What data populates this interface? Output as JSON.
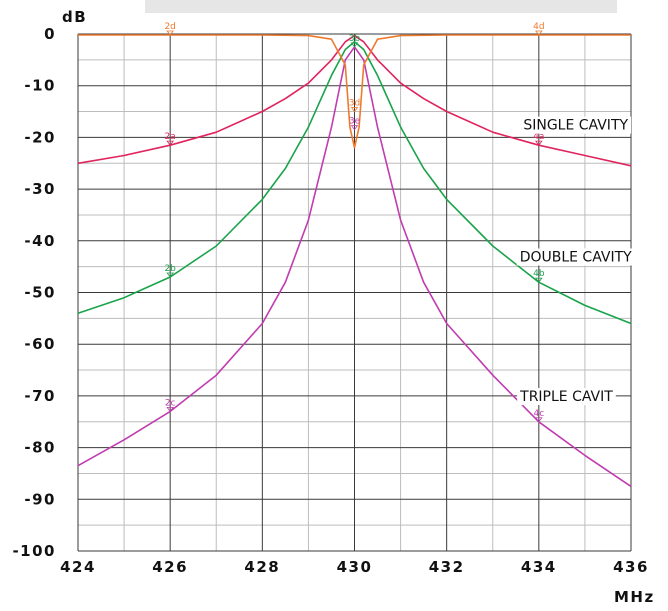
{
  "chart_data": {
    "type": "line",
    "title": "",
    "xlabel": "MHz",
    "ylabel": "dB",
    "xlim": [
      424,
      436
    ],
    "ylim": [
      -100,
      0
    ],
    "x_ticks": [
      "424",
      "426",
      "428",
      "430",
      "432",
      "434",
      "436"
    ],
    "y_ticks": [
      "0",
      "-10",
      "-20",
      "-30",
      "-40",
      "-50",
      "-60",
      "-70",
      "-80",
      "-90",
      "-100"
    ],
    "grid": true,
    "colors": {
      "single": "#e0245e",
      "double": "#19a34a",
      "triple": "#c03cb0",
      "notch": "#ee7a2e",
      "grid": "#3a3a3a",
      "gridMinor": "#bdbdbd"
    },
    "series": [
      {
        "name": "SINGLE CAVITY",
        "x": [
          424,
          425,
          426,
          427,
          428,
          428.5,
          429,
          429.5,
          429.8,
          430,
          430.2,
          430.5,
          431,
          431.5,
          432,
          433,
          434,
          435,
          436
        ],
        "y": [
          -25,
          -23.5,
          -21.5,
          -19,
          -15,
          -12.5,
          -9.5,
          -5,
          -1.5,
          -0.3,
          -1.5,
          -5,
          -9.5,
          -12.5,
          -15,
          -19,
          -21.5,
          -23.5,
          -25.5
        ]
      },
      {
        "name": "DOUBLE CAVITY",
        "x": [
          424,
          425,
          426,
          427,
          428,
          428.5,
          429,
          429.5,
          429.8,
          430,
          430.2,
          430.5,
          431,
          431.5,
          432,
          433,
          434,
          435,
          436
        ],
        "y": [
          -54,
          -51,
          -47,
          -41,
          -32,
          -26,
          -18,
          -8,
          -3,
          -1.5,
          -3,
          -8,
          -18,
          -26,
          -32,
          -41,
          -48,
          -52.5,
          -56
        ]
      },
      {
        "name": "TRIPLE CAVIT",
        "x": [
          424,
          425,
          426,
          427,
          428,
          428.5,
          429,
          429.5,
          429.8,
          430,
          430.2,
          430.5,
          431,
          431.5,
          432,
          433,
          434,
          435,
          436
        ],
        "y": [
          -83.5,
          -78.5,
          -73,
          -66,
          -56,
          -48,
          -36,
          -18,
          -5,
          -2.5,
          -5,
          -18,
          -36,
          -48,
          -56,
          -66,
          -75,
          -81.5,
          -87.5
        ]
      },
      {
        "name": "",
        "x": [
          424,
          428,
          429,
          429.5,
          429.8,
          429.9,
          430,
          430.1,
          430.2,
          430.5,
          431,
          432,
          436
        ],
        "y": [
          -0.2,
          -0.2,
          -0.3,
          -1,
          -6,
          -18,
          -22,
          -18,
          -6,
          -1,
          -0.3,
          -0.2,
          -0.2
        ]
      }
    ],
    "annotations": [
      {
        "text": "SINGLE CAVITY",
        "x": 434.8,
        "y": -18.5
      },
      {
        "text": "DOUBLE CAVITY",
        "x": 434.8,
        "y": -44
      },
      {
        "text": "TRIPLE CAVIT",
        "x": 434.6,
        "y": -71
      }
    ],
    "markers": [
      {
        "text": "2d",
        "x": 426,
        "y": -0.2,
        "series": 3
      },
      {
        "text": "4d",
        "x": 434,
        "y": -0.2,
        "series": 3
      },
      {
        "text": "2a",
        "x": 426,
        "y": -21.5,
        "series": 0
      },
      {
        "text": "4a",
        "x": 434,
        "y": -21.5,
        "series": 0
      },
      {
        "text": "2b",
        "x": 426,
        "y": -47,
        "series": 1
      },
      {
        "text": "4b",
        "x": 434,
        "y": -48,
        "series": 1
      },
      {
        "text": "2c",
        "x": 426,
        "y": -73,
        "series": 2
      },
      {
        "text": "4c",
        "x": 434,
        "y": -75,
        "series": 2
      },
      {
        "text": "3b",
        "x": 430,
        "y": -2.5,
        "series": 1
      },
      {
        "text": "3d",
        "x": 430,
        "y": -15,
        "series": 3
      },
      {
        "text": "3e",
        "x": 430,
        "y": -18.5,
        "series": 2
      }
    ]
  }
}
